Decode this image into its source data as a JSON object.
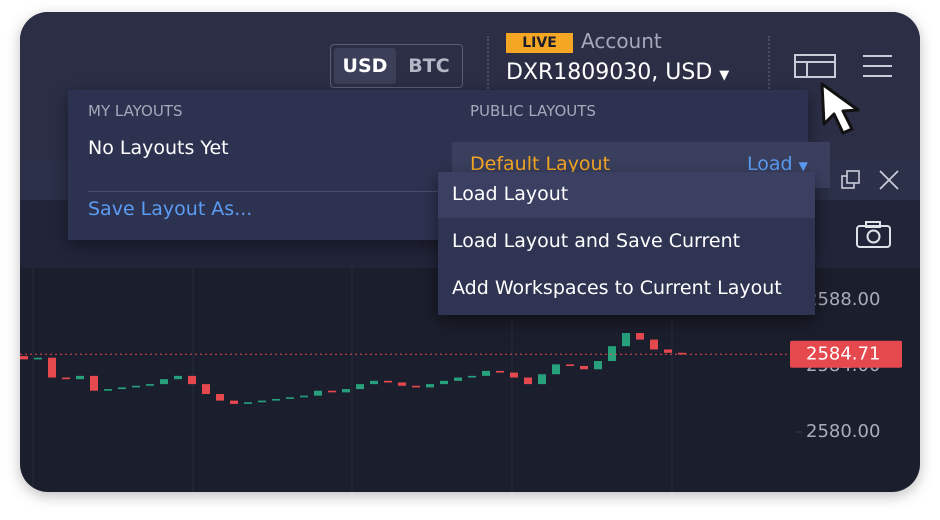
{
  "header": {
    "currencies": [
      "USD",
      "BTC"
    ],
    "badge": "LIVE",
    "account_label": "Account",
    "account_id": "DXR1809030, USD"
  },
  "layouts_menu": {
    "my_layouts": {
      "title": "MY LAYOUTS",
      "empty": "No Layouts Yet",
      "save": "Save Layout As..."
    },
    "public_layouts": {
      "title": "PUBLIC LAYOUTS",
      "item": "Default Layout",
      "action": "Load"
    },
    "submenu": [
      "Load Layout",
      "Load Layout and Save Current",
      "Add Workspaces to Current Layout"
    ]
  },
  "chart": {
    "type": "candlestick",
    "open": [
      2584.6,
      2584.4,
      2584.5,
      2583.3,
      2583.2,
      2583.4,
      2582.5,
      2582.6,
      2582.7,
      2582.8,
      2582.9,
      2583.2,
      2583.4,
      2582.9,
      2582.3,
      2581.9,
      2581.7,
      2581.8,
      2581.9,
      2582.0,
      2582.1,
      2582.2,
      2582.5,
      2582.4,
      2582.6,
      2582.9,
      2583.1,
      2583.0,
      2582.8,
      2582.7,
      2582.9,
      2583.1,
      2583.3,
      2583.4,
      2583.7,
      2583.6,
      2583.3,
      2582.9,
      2583.5,
      2584.1,
      2584.0,
      2583.8,
      2584.3,
      2585.2,
      2586.0,
      2585.6,
      2585.0,
      2584.8
    ],
    "close": [
      2584.4,
      2584.5,
      2583.3,
      2583.2,
      2583.4,
      2582.5,
      2582.6,
      2582.7,
      2582.8,
      2582.9,
      2583.2,
      2583.4,
      2582.9,
      2582.3,
      2581.9,
      2581.7,
      2581.8,
      2581.9,
      2582.0,
      2582.1,
      2582.2,
      2582.5,
      2582.4,
      2582.6,
      2582.9,
      2583.1,
      2583.0,
      2582.8,
      2582.7,
      2582.9,
      2583.1,
      2583.3,
      2583.4,
      2583.7,
      2583.6,
      2583.3,
      2582.9,
      2583.5,
      2584.1,
      2584.0,
      2583.8,
      2584.3,
      2585.2,
      2586.0,
      2585.6,
      2585.0,
      2584.8,
      2584.7
    ],
    "ylim": [
      2576.36,
      2589.94
    ],
    "yticks": [
      {
        "value": 2588,
        "label": "2588.00"
      },
      {
        "value": 2584,
        "label": "2584.00"
      },
      {
        "value": 2580,
        "label": "2580.00"
      }
    ],
    "current_price": 2584.71,
    "up_color": "#26a17b",
    "down_color": "#e5484d"
  }
}
